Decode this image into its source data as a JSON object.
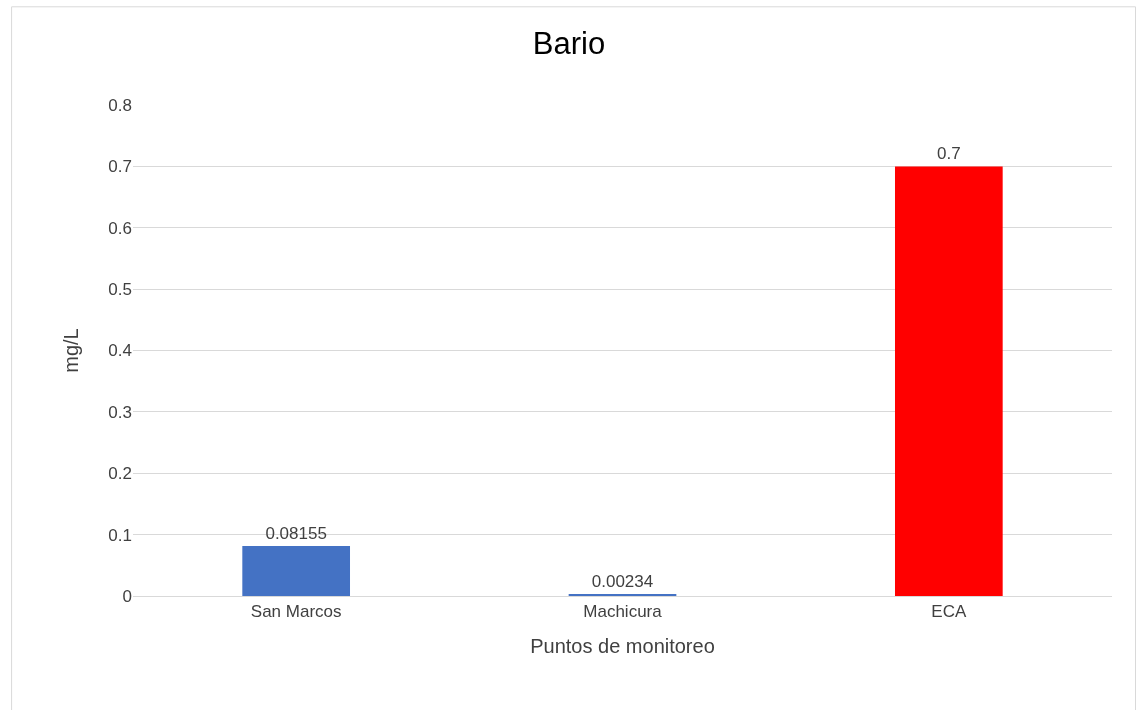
{
  "chart_data": {
    "type": "bar",
    "title": "Bario",
    "xlabel": "Puntos de monitoreo",
    "ylabel": "mg/L",
    "categories": [
      "San Marcos",
      "Machicura",
      "ECA"
    ],
    "values": [
      0.08155,
      0.00234,
      0.7
    ],
    "colors": [
      "#4472c4",
      "#4472c4",
      "#ff0000"
    ],
    "ylim": [
      0,
      0.8
    ],
    "yticks": [
      0,
      0.1,
      0.2,
      0.3,
      0.4,
      0.5,
      0.6,
      0.7,
      0.8
    ],
    "grid": "y",
    "data_labels": true
  }
}
